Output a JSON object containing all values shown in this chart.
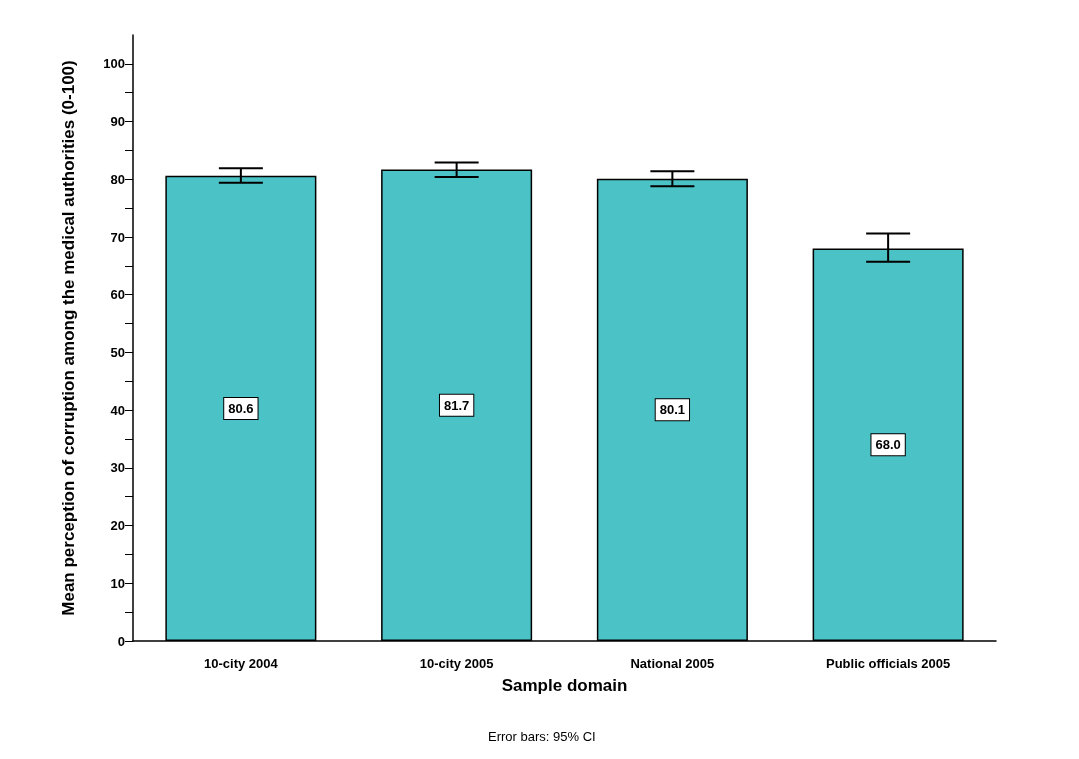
{
  "chart_data": {
    "type": "bar",
    "xlabel": "Sample domain",
    "ylabel": "Mean perception of corruption among the medical authorities (0-100)",
    "categories": [
      "10-city 2004",
      "10-city 2005",
      "National 2005",
      "Public officials 2005"
    ],
    "values": [
      80.6,
      81.7,
      80.1,
      68.0
    ],
    "color": "#4bc2c5",
    "errors": [
      [
        79.4,
        81.9
      ],
      [
        80.4,
        82.9
      ],
      [
        78.8,
        81.4
      ],
      [
        65.7,
        70.6
      ]
    ],
    "value_labels": [
      "80.6",
      "81.7",
      "80.1",
      "68.0"
    ],
    "ylim": [
      0,
      105
    ],
    "yticks": [
      0,
      10,
      20,
      30,
      40,
      50,
      60,
      70,
      80,
      90,
      100
    ],
    "grid": false,
    "annotations": [
      "Error bars: 95% CI"
    ]
  }
}
